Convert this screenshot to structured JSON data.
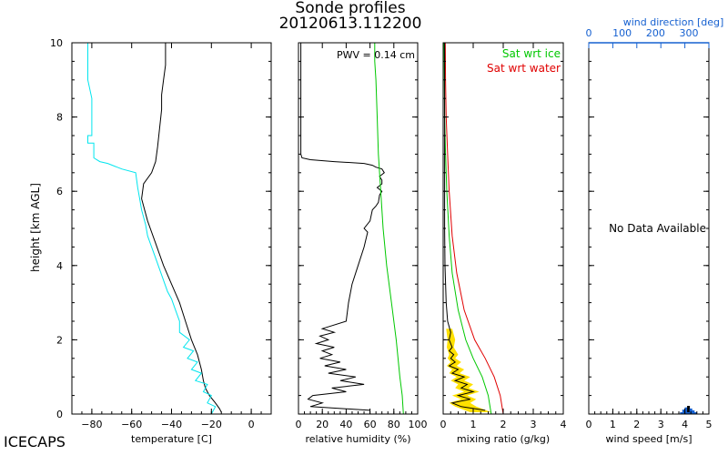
{
  "page": {
    "title_line1": "Sonde profiles",
    "title_line2": "20120613.112200",
    "footer_label": "ICECAPS"
  },
  "colors": {
    "temperature": "#000000",
    "dewpoint": "#00e5ee",
    "rh_measured": "#000000",
    "rh_sat_ice": "#00c800",
    "mixing_measured": "#000000",
    "mixing_band": "#ffe000",
    "sat_ice": "#00c800",
    "sat_water": "#e00000",
    "wind_axis": "#1560d0",
    "wind_bars": "#1560d0"
  },
  "chart_data": [
    {
      "type": "line",
      "panel": "temperature",
      "xlabel": "temperature [C]",
      "ylabel": "height [km AGL]",
      "xlim": [
        -90,
        10
      ],
      "ylim": [
        0,
        10
      ],
      "xticks": [
        -80,
        -60,
        -40,
        -20,
        0
      ],
      "xticklabels": [
        "−80",
        "−60",
        "−40",
        "−20",
        "0"
      ],
      "yticks": [
        0,
        2,
        4,
        6,
        8,
        10
      ],
      "yticklabels": [
        "0",
        "2",
        "4",
        "6",
        "8",
        "10"
      ],
      "series": [
        {
          "role": "temperature",
          "x": [
            -15,
            -16,
            -18,
            -21,
            -23,
            -24,
            -25,
            -27,
            -30,
            -33,
            -36,
            -40,
            -44,
            -48,
            -52,
            -55,
            -54,
            -50,
            -48,
            -47,
            -46,
            -45,
            -45,
            -44,
            -43,
            -43,
            -43
          ],
          "y": [
            0.05,
            0.15,
            0.3,
            0.5,
            0.7,
            0.9,
            1.2,
            1.6,
            2.0,
            2.5,
            3.0,
            3.5,
            4.0,
            4.6,
            5.2,
            5.8,
            6.2,
            6.5,
            6.8,
            7.2,
            7.7,
            8.2,
            8.6,
            9.0,
            9.4,
            9.8,
            10.0
          ]
        },
        {
          "role": "dewpoint",
          "x": [
            -20,
            -18,
            -22,
            -20,
            -24,
            -22,
            -28,
            -25,
            -30,
            -27,
            -32,
            -29,
            -34,
            -31,
            -36,
            -36,
            -38,
            -40,
            -42,
            -44,
            -46,
            -48,
            -50,
            -52,
            -53,
            -55,
            -56,
            -57,
            -58,
            -65,
            -72,
            -76,
            -79,
            -79,
            -82,
            -82,
            -80,
            -80,
            -82,
            -82
          ],
          "y": [
            0.0,
            0.2,
            0.3,
            0.5,
            0.6,
            0.8,
            0.9,
            1.1,
            1.2,
            1.4,
            1.5,
            1.7,
            1.8,
            2.0,
            2.2,
            2.5,
            2.8,
            3.1,
            3.3,
            3.6,
            3.9,
            4.2,
            4.5,
            4.8,
            5.1,
            5.5,
            5.8,
            6.1,
            6.5,
            6.6,
            6.75,
            6.8,
            6.9,
            7.3,
            7.3,
            7.5,
            7.5,
            8.5,
            9.0,
            10.0
          ]
        }
      ]
    },
    {
      "type": "line",
      "panel": "relative_humidity",
      "xlabel": "relative humidity (%)",
      "xlim": [
        0,
        100
      ],
      "ylim": [
        0,
        10
      ],
      "xticks": [
        0,
        20,
        40,
        60,
        80,
        100
      ],
      "xticklabels": [
        "0",
        "20",
        "40",
        "60",
        "80",
        "100"
      ],
      "annotation": "PWV = 0.14 cm",
      "series": [
        {
          "role": "rh_measured",
          "x": [
            60,
            10,
            20,
            8,
            12,
            40,
            28,
            55,
            35,
            48,
            25,
            40,
            22,
            35,
            18,
            28,
            20,
            30,
            15,
            25,
            18,
            30,
            20,
            40,
            42,
            45,
            50,
            55,
            58,
            55,
            60,
            62,
            65,
            67,
            68,
            70,
            66,
            70,
            70,
            68,
            72,
            70,
            65,
            62,
            55,
            30,
            10,
            3,
            2,
            2,
            2
          ],
          "y": [
            0.1,
            0.2,
            0.3,
            0.4,
            0.5,
            0.6,
            0.7,
            0.8,
            0.9,
            1.0,
            1.1,
            1.2,
            1.3,
            1.4,
            1.5,
            1.6,
            1.7,
            1.8,
            1.9,
            2.0,
            2.1,
            2.2,
            2.3,
            2.5,
            3.0,
            3.5,
            4.0,
            4.5,
            4.9,
            5.0,
            5.2,
            5.5,
            5.6,
            5.7,
            5.9,
            6.0,
            6.1,
            6.2,
            6.3,
            6.4,
            6.5,
            6.6,
            6.65,
            6.7,
            6.75,
            6.8,
            6.85,
            6.9,
            7.0,
            8.0,
            10.0
          ]
        },
        {
          "role": "rh_sat_ice",
          "x": [
            88,
            87,
            85,
            82,
            78,
            74,
            71,
            69,
            67,
            66,
            65,
            64,
            64
          ],
          "y": [
            0.0,
            0.5,
            1.0,
            2.0,
            3.0,
            4.0,
            5.0,
            6.0,
            7.0,
            8.0,
            9.0,
            9.5,
            10.0
          ]
        }
      ]
    },
    {
      "type": "line",
      "panel": "mixing_ratio",
      "xlabel": "mixing ratio (g/kg)",
      "xlim": [
        0,
        4
      ],
      "ylim": [
        0,
        10
      ],
      "xticks": [
        0,
        1,
        2,
        3,
        4
      ],
      "xticklabels": [
        "0",
        "1",
        "2",
        "3",
        "4"
      ],
      "series": [
        {
          "name": "Sat wrt ice",
          "role": "sat_ice",
          "x": [
            1.6,
            1.5,
            1.3,
            1.0,
            0.75,
            0.5,
            0.3,
            0.2,
            0.12,
            0.08,
            0.05,
            0.04,
            0.03
          ],
          "y": [
            0.0,
            0.5,
            1.0,
            1.5,
            2.0,
            2.8,
            3.8,
            4.8,
            6.0,
            7.0,
            8.0,
            9.0,
            10.0
          ]
        },
        {
          "name": "Sat wrt water",
          "role": "sat_water",
          "x": [
            2.0,
            1.9,
            1.7,
            1.4,
            1.05,
            0.7,
            0.45,
            0.3,
            0.2,
            0.15,
            0.1,
            0.08,
            0.07
          ],
          "y": [
            0.0,
            0.5,
            1.0,
            1.5,
            2.0,
            2.8,
            3.8,
            4.8,
            6.0,
            7.0,
            8.0,
            9.0,
            10.0
          ]
        },
        {
          "role": "mixing_measured",
          "x": [
            1.4,
            0.6,
            0.3,
            0.9,
            0.5,
            1.0,
            0.6,
            0.8,
            0.4,
            0.7,
            0.3,
            0.5,
            0.2,
            0.4,
            0.25,
            0.35,
            0.2,
            0.3,
            0.2,
            0.25,
            0.15,
            0.1,
            0.06,
            0.05,
            0.05,
            0.05
          ],
          "y": [
            0.1,
            0.2,
            0.3,
            0.4,
            0.5,
            0.6,
            0.7,
            0.8,
            0.9,
            1.0,
            1.1,
            1.2,
            1.3,
            1.4,
            1.5,
            1.6,
            1.7,
            1.8,
            2.0,
            2.2,
            2.5,
            3.0,
            4.0,
            5.0,
            6.0,
            10.0
          ]
        }
      ],
      "band": {
        "role": "mixing_band",
        "x_lo": [
          0.9,
          0.4,
          0.2,
          0.6,
          0.3,
          0.7,
          0.4,
          0.5,
          0.25,
          0.45,
          0.2,
          0.3,
          0.12,
          0.25,
          0.15,
          0.2,
          0.12,
          0.15,
          0.1
        ],
        "x_hi": [
          1.6,
          1.1,
          0.9,
          1.1,
          0.8,
          1.2,
          0.85,
          1.0,
          0.7,
          0.9,
          0.55,
          0.7,
          0.45,
          0.6,
          0.4,
          0.5,
          0.35,
          0.4,
          0.3
        ],
        "y": [
          0.05,
          0.2,
          0.3,
          0.4,
          0.5,
          0.6,
          0.7,
          0.8,
          0.9,
          1.0,
          1.1,
          1.2,
          1.3,
          1.4,
          1.5,
          1.6,
          1.8,
          2.0,
          2.3
        ]
      }
    },
    {
      "type": "bar",
      "panel": "wind",
      "xlabel": "wind speed [m/s]",
      "top_label": "wind direction [deg]",
      "xlim": [
        0,
        5
      ],
      "ylim": [
        0,
        10
      ],
      "xticks": [
        0,
        1,
        2,
        3,
        4,
        5
      ],
      "xticklabels": [
        "0",
        "1",
        "2",
        "3",
        "4",
        "5"
      ],
      "top_xlim": [
        0,
        360
      ],
      "top_xticks": [
        0,
        100,
        200,
        300
      ],
      "top_xticklabels": [
        "0",
        "100",
        "200",
        "300"
      ],
      "annotation": "No Data Available",
      "bars": [
        {
          "series": "wind speed",
          "x": 3.95,
          "height": 0.12
        },
        {
          "series": "wind speed",
          "x": 4.05,
          "height": 0.18
        },
        {
          "series": "wind direction",
          "x": 4.15,
          "height": 0.22
        },
        {
          "series": "wind speed",
          "x": 4.25,
          "height": 0.15
        },
        {
          "series": "wind speed",
          "x": 4.35,
          "height": 0.1
        }
      ]
    }
  ]
}
